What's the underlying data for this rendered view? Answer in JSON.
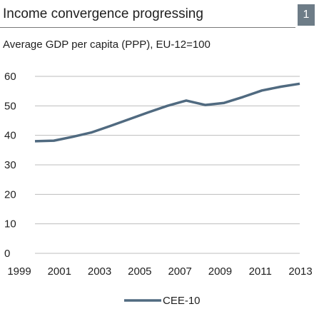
{
  "header": {
    "title": "Income convergence progressing",
    "badge": "1"
  },
  "subtitle": "Average GDP per capita (PPP), EU-12=100",
  "colors": {
    "series": "#506a80",
    "badge_bg": "#6d7c87",
    "gridline": "#bdbdbd",
    "rule": "#7a7a7a",
    "text": "#1f1f1f"
  },
  "chart_data": {
    "type": "line",
    "title": "Income convergence progressing",
    "subtitle": "Average GDP per capita (PPP), EU-12=100",
    "x": [
      1999,
      2000,
      2001,
      2002,
      2003,
      2004,
      2005,
      2006,
      2007,
      2008,
      2009,
      2010,
      2011,
      2012,
      2013
    ],
    "x_tick_labels": [
      "1999",
      "2001",
      "2003",
      "2005",
      "2007",
      "2009",
      "2011",
      "2013"
    ],
    "y_ticks": [
      0,
      10,
      20,
      30,
      40,
      50,
      60
    ],
    "ylim": [
      0,
      60
    ],
    "xlim": [
      1999,
      2013
    ],
    "grid": true,
    "legend_position": "bottom-center",
    "series": [
      {
        "name": "CEE-10",
        "values": [
          38.0,
          38.2,
          39.5,
          41.0,
          43.2,
          45.5,
          47.8,
          50.0,
          51.8,
          50.3,
          51.0,
          53.0,
          55.2,
          56.5,
          57.5
        ]
      }
    ]
  }
}
